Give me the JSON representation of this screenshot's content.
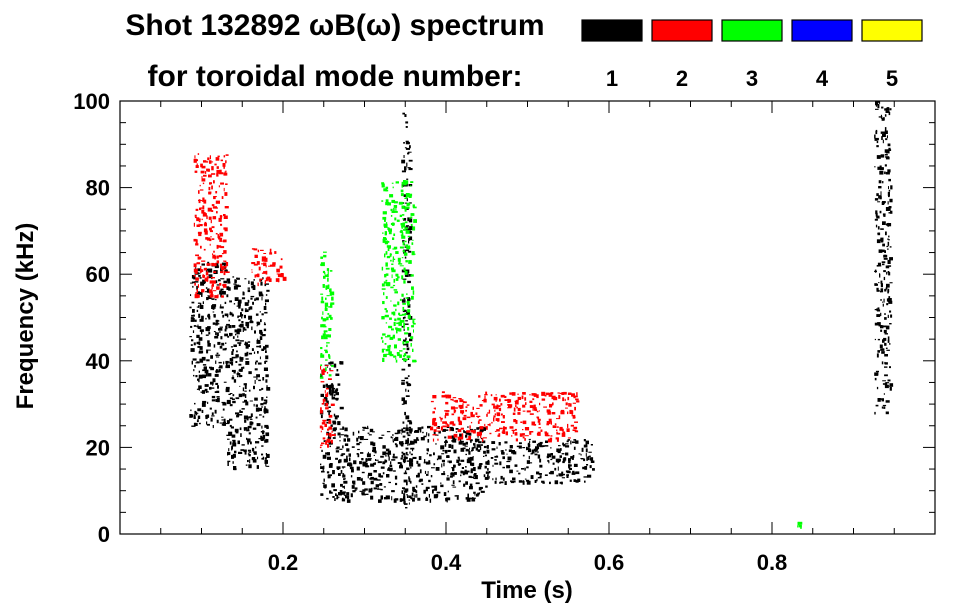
{
  "chart_data": {
    "type": "heatmap",
    "title_line1": "Shot 132892 ωB(ω) spectrum",
    "title_line2": "for toroidal mode number:",
    "xlabel": "Time (s)",
    "ylabel": "Frequency (kHz)",
    "xlim": [
      0.0,
      1.0
    ],
    "ylim": [
      0,
      100
    ],
    "x_ticks": [
      0.2,
      0.4,
      0.6,
      0.8
    ],
    "x_tick_labels": [
      "0.2",
      "0.4",
      "0.6",
      "0.8"
    ],
    "y_ticks": [
      0,
      20,
      40,
      60,
      80,
      100
    ],
    "y_tick_labels": [
      "0",
      "20",
      "40",
      "60",
      "80",
      "100"
    ],
    "legend_placement": "top-right",
    "legend": [
      {
        "label": "1",
        "color": "#000000"
      },
      {
        "label": "2",
        "color": "#ff0000"
      },
      {
        "label": "3",
        "color": "#00ff00"
      },
      {
        "label": "4",
        "color": "#0000ff"
      },
      {
        "label": "5",
        "color": "#ffff00"
      }
    ],
    "series": [
      {
        "name": "1",
        "color": "#000000",
        "regions": [
          {
            "t": [
              0.085,
              0.13
            ],
            "f": [
              25,
              63
            ]
          },
          {
            "t": [
              0.13,
              0.18
            ],
            "f": [
              15,
              60
            ]
          },
          {
            "t": [
              0.245,
              0.27
            ],
            "f": [
              8,
              40
            ]
          },
          {
            "t": [
              0.27,
              0.45
            ],
            "f": [
              8,
              25
            ]
          },
          {
            "t": [
              0.45,
              0.58
            ],
            "f": [
              12,
              22
            ]
          },
          {
            "t": [
              0.345,
              0.355
            ],
            "f": [
              5,
              98
            ]
          },
          {
            "t": [
              0.925,
              0.945
            ],
            "f": [
              28,
              100
            ]
          }
        ]
      },
      {
        "name": "2",
        "color": "#ff0000",
        "regions": [
          {
            "t": [
              0.09,
              0.13
            ],
            "f": [
              55,
              88
            ]
          },
          {
            "t": [
              0.16,
              0.2
            ],
            "f": [
              58,
              66
            ]
          },
          {
            "t": [
              0.245,
              0.26
            ],
            "f": [
              20,
              40
            ]
          },
          {
            "t": [
              0.38,
              0.56
            ],
            "f": [
              22,
              33
            ]
          }
        ]
      },
      {
        "name": "3",
        "color": "#00ff00",
        "regions": [
          {
            "t": [
              0.245,
              0.26
            ],
            "f": [
              36,
              66
            ]
          },
          {
            "t": [
              0.32,
              0.36
            ],
            "f": [
              40,
              82
            ]
          },
          {
            "t": [
              0.83,
              0.835
            ],
            "f": [
              1,
              3
            ]
          }
        ]
      }
    ]
  }
}
